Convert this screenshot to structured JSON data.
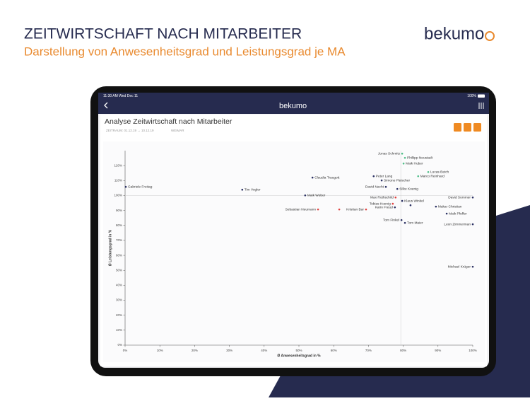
{
  "header": {
    "title": "ZEITWIRTSCHAFT NACH MITARBEITER",
    "subtitle": "Darstellung von Anwesenheitsgrad und Leistungsgrad je MA",
    "logo": "bekumo"
  },
  "status_bar": {
    "time": "11:30 AM  Wed Dec 11",
    "battery": "100%"
  },
  "app": {
    "logo": "bekumo"
  },
  "card": {
    "title": "Analyse Zeitwirtschaft nach Mitarbeiter",
    "period": "ZEITRAUM: 01.12.19 → 10.12.19",
    "location": "WEIMAR"
  },
  "chart_data": {
    "type": "scatter",
    "x_label": "Ø Anwesenheitsgrad in %",
    "y_label": "Ø Leistungsgrad in %",
    "xlim": [
      0,
      100
    ],
    "ylim": [
      0,
      130
    ],
    "xticks": [
      {
        "value": 0,
        "label": "0%"
      },
      {
        "value": 10,
        "label": "10%"
      },
      {
        "value": 20,
        "label": "20%"
      },
      {
        "value": 30,
        "label": "30%"
      },
      {
        "value": 40,
        "label": "40%"
      },
      {
        "value": 50,
        "label": "50%"
      },
      {
        "value": 60,
        "label": "60%"
      },
      {
        "value": 70,
        "label": "70%"
      },
      {
        "value": 80,
        "label": "80%"
      },
      {
        "value": 90,
        "label": "90%"
      },
      {
        "value": 100,
        "label": "100%"
      }
    ],
    "yticks": [
      {
        "value": 0,
        "label": "0%"
      },
      {
        "value": 10,
        "label": "10%"
      },
      {
        "value": 20,
        "label": "20%"
      },
      {
        "value": 30,
        "label": "30%"
      },
      {
        "value": 40,
        "label": "40%"
      },
      {
        "value": 50,
        "label": "50%"
      },
      {
        "value": 60,
        "label": "60%"
      },
      {
        "value": 70,
        "label": "70%"
      },
      {
        "value": 80,
        "label": "80%"
      },
      {
        "value": 90,
        "label": "90%"
      },
      {
        "value": 100,
        "label": "100%"
      },
      {
        "value": 110,
        "label": "110%"
      },
      {
        "value": 120,
        "label": "120%"
      }
    ],
    "grid": false,
    "reference_lines": {
      "x": 79.3,
      "y": 100
    },
    "labels": [
      "Gabriele Freitag",
      "Tim Vogler",
      "Claudia Traugott",
      "Maik Weber",
      "Sebastian Neumann",
      null,
      "Kristian Bar",
      "Jonas Schmitz",
      "Phillipp Neustadt",
      "Maik Huber",
      "Lucas Beich",
      "Marco Reinhard",
      "Peter Lang",
      "Simone Fleischer",
      "David Nacht",
      "Silke Koenig",
      "David Sommer",
      "Max Rothschild",
      "Tobias Koenig",
      "Klaus Winkel",
      "Karin Freud",
      null,
      "Makar Christian",
      "Maik Pfeffer",
      "Tom Finkel",
      "Tom Maier",
      "Leon Zimmerman",
      "Michael Krüger"
    ],
    "x": [
      0.2,
      33.7,
      53.9,
      51.8,
      55.5,
      61.6,
      69.3,
      79.7,
      80.5,
      80.1,
      87.2,
      84.3,
      71.5,
      73.8,
      75.0,
      78.3,
      100,
      77.8,
      77.0,
      79.7,
      77.6,
      82.1,
      89.4,
      92.5,
      79.5,
      80.5,
      100,
      100
    ],
    "values": [
      105.8,
      103.9,
      112,
      100.1,
      90.7,
      90.7,
      90.7,
      128,
      125.2,
      121.4,
      115.7,
      112.9,
      112.9,
      110.1,
      105.8,
      104.4,
      98.7,
      98.7,
      94.5,
      96.4,
      92.1,
      93.5,
      92.6,
      87.9,
      83.6,
      81.7,
      80.8,
      52.4
    ],
    "colors": [
      "#2b3163",
      "#2b3163",
      "#2b3163",
      "#2b3163",
      "#e0413f",
      "#e0413f",
      "#e0413f",
      "#4fbf8a",
      "#4fbf8a",
      "#4fbf8a",
      "#4fbf8a",
      "#4fbf8a",
      "#2b3163",
      "#2b3163",
      "#2b3163",
      "#2b3163",
      "#2b3163",
      "#e0413f",
      "#e0413f",
      "#2b3163",
      "#2b3163",
      "#2b3163",
      "#2b3163",
      "#2b3163",
      "#2b3163",
      "#2b3163",
      "#2b3163",
      "#2b3163"
    ]
  }
}
